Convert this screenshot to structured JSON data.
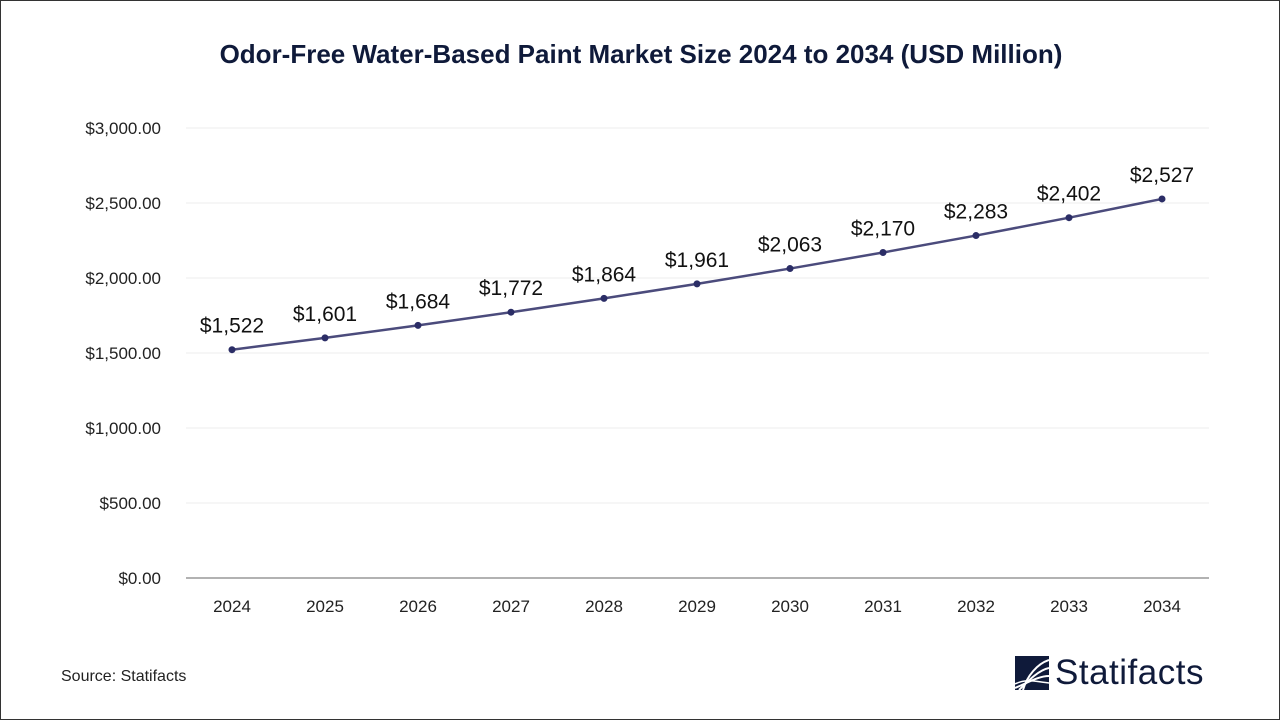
{
  "chart_data": {
    "type": "line",
    "title": "Odor-Free Water-Based Paint Market Size 2024 to 2034 (USD Million)",
    "categories": [
      "2024",
      "2025",
      "2026",
      "2027",
      "2028",
      "2029",
      "2030",
      "2031",
      "2032",
      "2033",
      "2034"
    ],
    "values": [
      1522,
      1601,
      1684,
      1772,
      1864,
      1961,
      2063,
      2170,
      2283,
      2402,
      2527
    ],
    "data_labels": [
      "$1,522",
      "$1,601",
      "$1,684",
      "$1,772",
      "$1,864",
      "$1,961",
      "$2,063",
      "$2,170",
      "$2,283",
      "$2,402",
      "$2,527"
    ],
    "ylim": [
      0,
      3000
    ],
    "yticks": [
      0,
      500,
      1000,
      1500,
      2000,
      2500,
      3000
    ],
    "ytick_labels": [
      "$0.00",
      "$500.00",
      "$1,000.00",
      "$1,500.00",
      "$2,000.00",
      "$2,500.00",
      "$3,000.00"
    ],
    "xlabel": "",
    "ylabel": "",
    "grid": true,
    "line_color": "#4b4b7c",
    "marker_color": "#2b2d66"
  },
  "source": "Source: Statifacts",
  "logo": {
    "text": "Statifacts",
    "color": "#0f1a3a"
  }
}
